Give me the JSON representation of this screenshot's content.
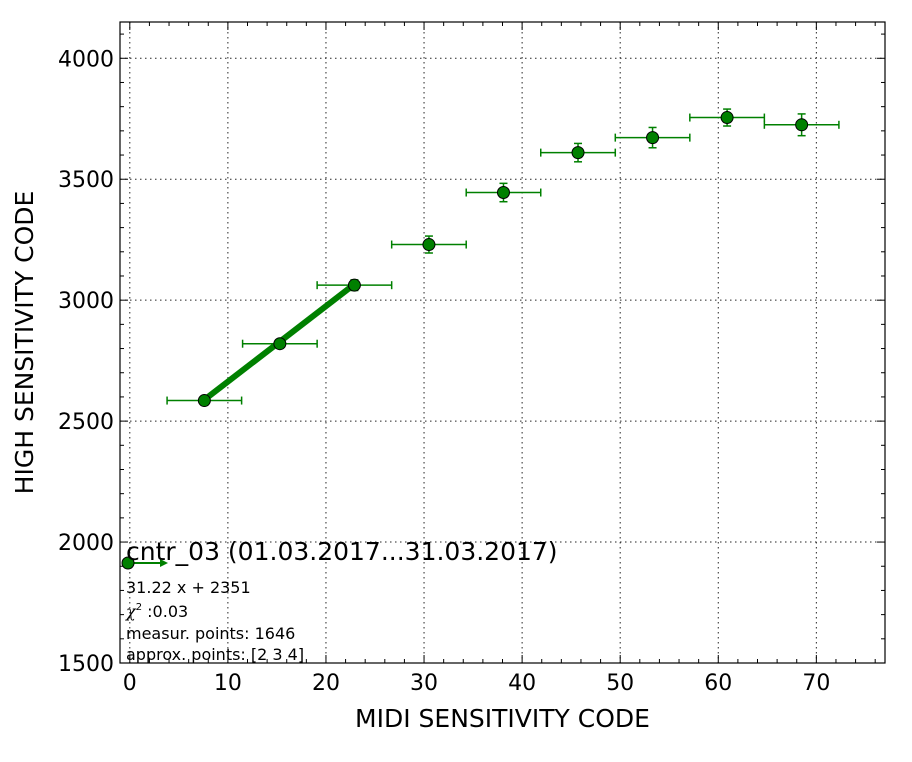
{
  "chart_data": {
    "type": "scatter",
    "xlabel": "MIDI SENSITIVITY CODE",
    "ylabel": "HIGH SENSITIVITY CODE",
    "xlim": [
      -1,
      77
    ],
    "ylim": [
      1500,
      4150
    ],
    "xticks": [
      0,
      10,
      20,
      30,
      40,
      50,
      60,
      70
    ],
    "yticks": [
      1500,
      2000,
      2500,
      3000,
      3500,
      4000
    ],
    "grid": true,
    "color": "#008000",
    "series": [
      {
        "marker": "circle",
        "points": [
          {
            "x": 7.6,
            "y": 2585,
            "xerr": 3.8,
            "yerr": 12
          },
          {
            "x": 15.3,
            "y": 2820,
            "xerr": 3.8,
            "yerr": 14
          },
          {
            "x": 22.9,
            "y": 3062,
            "xerr": 3.8,
            "yerr": 22
          },
          {
            "x": 30.5,
            "y": 3230,
            "xerr": 3.8,
            "yerr": 35
          },
          {
            "x": 38.1,
            "y": 3445,
            "xerr": 3.8,
            "yerr": 38
          },
          {
            "x": 45.7,
            "y": 3610,
            "xerr": 3.8,
            "yerr": 38
          },
          {
            "x": 53.3,
            "y": 3672,
            "xerr": 3.8,
            "yerr": 42
          },
          {
            "x": 60.9,
            "y": 3755,
            "xerr": 3.8,
            "yerr": 35
          },
          {
            "x": 68.5,
            "y": 3725,
            "xerr": 3.8,
            "yerr": 45
          }
        ]
      }
    ],
    "fit_line": {
      "x": [
        7.6,
        22.9
      ],
      "slope": 31.22,
      "intercept": 2351
    },
    "legend": {
      "placement": "bottom-left",
      "title": "cntr_03 (01.03.2017...31.03.2017)"
    },
    "annotations": {
      "formula": "31.22 x + 2351",
      "chi_symbol": "χ",
      "chi_exp": "2",
      "chi_value": " :0.03",
      "measur": "measur. points: 1646",
      "approx": "approx. points: [2 3 4]"
    }
  }
}
